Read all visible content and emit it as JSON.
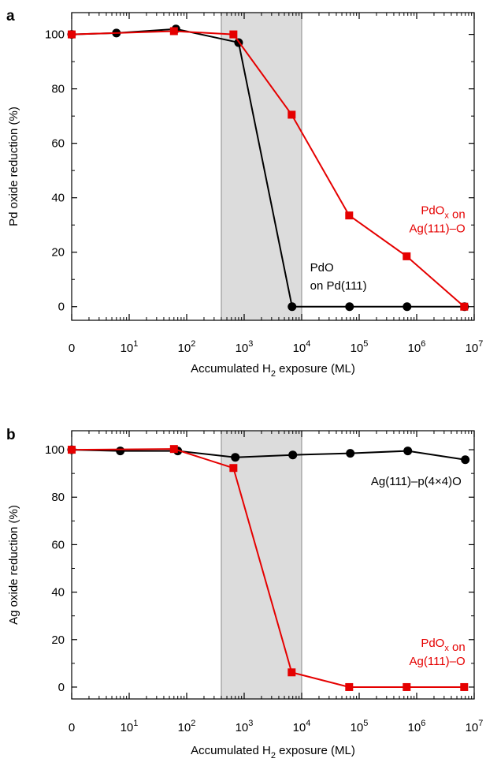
{
  "chart_data": [
    {
      "panel_label": "a",
      "type": "line",
      "xscale": "log (leftmost tick is 0)",
      "xlabel_parts": [
        "Accumulated H",
        "2",
        " exposure (ML)"
      ],
      "ylabel": "Pd oxide reduction (%)",
      "ylim": [
        -5,
        108
      ],
      "x_tick_labels": [
        {
          "base": "0",
          "exp": ""
        },
        {
          "base": "10",
          "exp": "1"
        },
        {
          "base": "10",
          "exp": "2"
        },
        {
          "base": "10",
          "exp": "3"
        },
        {
          "base": "10",
          "exp": "4"
        },
        {
          "base": "10",
          "exp": "5"
        },
        {
          "base": "10",
          "exp": "6"
        },
        {
          "base": "10",
          "exp": "7"
        }
      ],
      "y_ticks": [
        0,
        20,
        40,
        60,
        80,
        100
      ],
      "shaded_region_x": [
        400,
        10000
      ],
      "shade_color": "#dcdcdc",
      "series": [
        {
          "color": "#000000",
          "marker": "circle",
          "x": [
            0,
            6,
            65,
            800,
            6800,
            68000,
            680000,
            6800000
          ],
          "y": [
            100,
            100.5,
            102,
            97,
            0,
            0,
            0,
            0
          ]
        },
        {
          "color": "#e50000",
          "marker": "square",
          "x": [
            0,
            60,
            650,
            6700,
            67000,
            670000,
            6700000
          ],
          "y": [
            100,
            101.2,
            100,
            70.5,
            33.5,
            18.5,
            0
          ]
        }
      ],
      "annotations": [
        {
          "lines": [
            [
              "PdO"
            ],
            [
              "on Pd(111)"
            ]
          ],
          "color": "#000000",
          "anchor": "start",
          "x": 14000,
          "y": 13
        },
        {
          "lines": [
            [
              "PdO",
              {
                "sub": "x"
              },
              " on"
            ],
            [
              "Ag(111)–O"
            ]
          ],
          "color": "#e50000",
          "anchor": "end",
          "x": 7000000,
          "y": 34
        }
      ]
    },
    {
      "panel_label": "b",
      "type": "line",
      "xscale": "log (leftmost tick is 0)",
      "xlabel_parts": [
        "Accumulated H",
        "2",
        " exposure (ML)"
      ],
      "ylabel": "Ag oxide reduction (%)",
      "ylim": [
        -5,
        108
      ],
      "x_tick_labels": [
        {
          "base": "0",
          "exp": ""
        },
        {
          "base": "10",
          "exp": "1"
        },
        {
          "base": "10",
          "exp": "2"
        },
        {
          "base": "10",
          "exp": "3"
        },
        {
          "base": "10",
          "exp": "4"
        },
        {
          "base": "10",
          "exp": "5"
        },
        {
          "base": "10",
          "exp": "6"
        },
        {
          "base": "10",
          "exp": "7"
        }
      ],
      "y_ticks": [
        0,
        20,
        40,
        60,
        80,
        100
      ],
      "shaded_region_x": [
        400,
        10000
      ],
      "shade_color": "#dcdcdc",
      "series": [
        {
          "color": "#000000",
          "marker": "circle",
          "x": [
            0,
            7,
            70,
            700,
            7000,
            70000,
            700000,
            7000000
          ],
          "y": [
            100,
            99.5,
            99.5,
            96.8,
            97.8,
            98.5,
            99.5,
            95.8
          ]
        },
        {
          "color": "#e50000",
          "marker": "square",
          "x": [
            0,
            60,
            650,
            6700,
            67000,
            670000,
            6700000
          ],
          "y": [
            100,
            100.3,
            92.3,
            6.2,
            0,
            0,
            0
          ]
        }
      ],
      "annotations": [
        {
          "lines": [
            [
              "Ag(111)–p(4×4)O"
            ]
          ],
          "color": "#000000",
          "anchor": "end",
          "x": 6000000,
          "y": 85
        },
        {
          "lines": [
            [
              "PdO",
              {
                "sub": "x"
              },
              " on"
            ],
            [
              "Ag(111)–O"
            ]
          ],
          "color": "#e50000",
          "anchor": "end",
          "x": 7000000,
          "y": 17
        }
      ]
    }
  ]
}
